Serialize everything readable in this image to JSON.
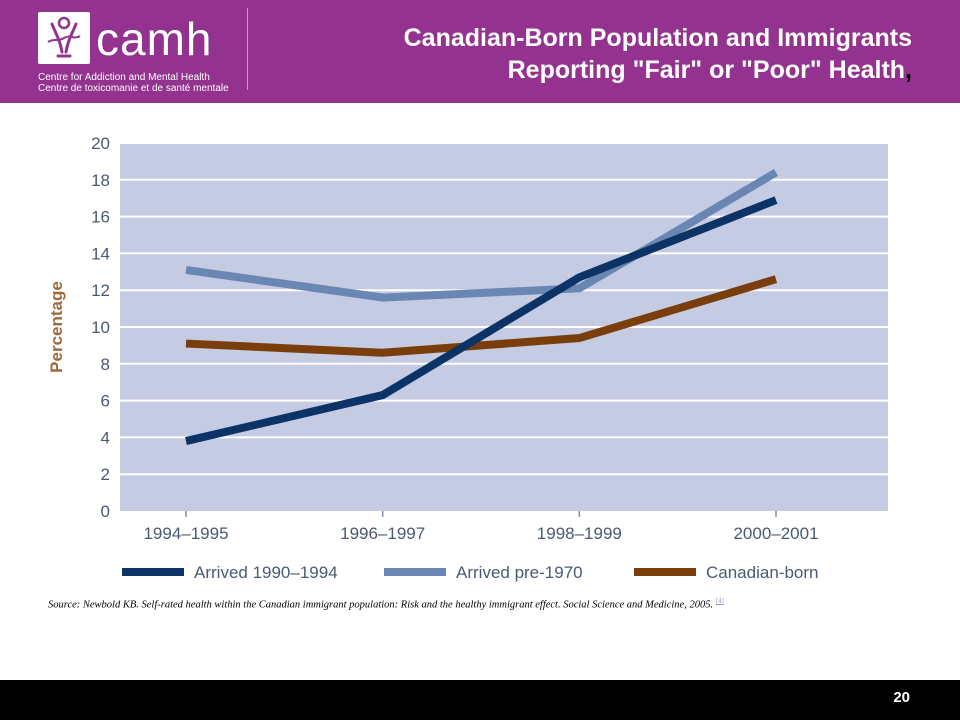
{
  "header": {
    "logo_word": "camh",
    "logo_line_en": "Centre for Addiction and Mental Health",
    "logo_line_fr": "Centre de toxicomanie et de santé mentale",
    "title_line1": "Canadian-Born Population and Immigrants",
    "title_line2": "Reporting \"Fair\" or \"Poor\" Health",
    "title_comma": ","
  },
  "colors": {
    "header_bg": "#93338f",
    "plot_bg": "#c5cbe3",
    "series_1": "#0b3366",
    "series_2": "#6a86b3",
    "series_3": "#7a3d0c",
    "ylabel": "#a06a3c"
  },
  "chart_data": {
    "type": "line",
    "title": "",
    "xlabel": "",
    "ylabel": "Percentage",
    "categories": [
      "1994–1995",
      "1996–1997",
      "1998–1999",
      "2000–2001"
    ],
    "ylim": [
      0,
      20
    ],
    "yticks": [
      0,
      2,
      4,
      6,
      8,
      10,
      12,
      14,
      16,
      18,
      20
    ],
    "grid": true,
    "legend_position": "bottom",
    "series": [
      {
        "name": "Arrived 1990–1994",
        "values": [
          3.8,
          6.3,
          12.7,
          16.9
        ]
      },
      {
        "name": "Arrived pre-1970",
        "values": [
          13.1,
          11.6,
          12.1,
          18.4
        ]
      },
      {
        "name": "Canadian-born",
        "values": [
          9.1,
          8.6,
          9.4,
          12.6
        ]
      }
    ]
  },
  "source": {
    "text": "Source: Newbold KB. Self-rated health within the Canadian immigrant population: Risk and the healthy immigrant effect. Social Science and Medicine, 2005.",
    "ref": "[4]"
  },
  "footer": {
    "slide_number": "20"
  }
}
